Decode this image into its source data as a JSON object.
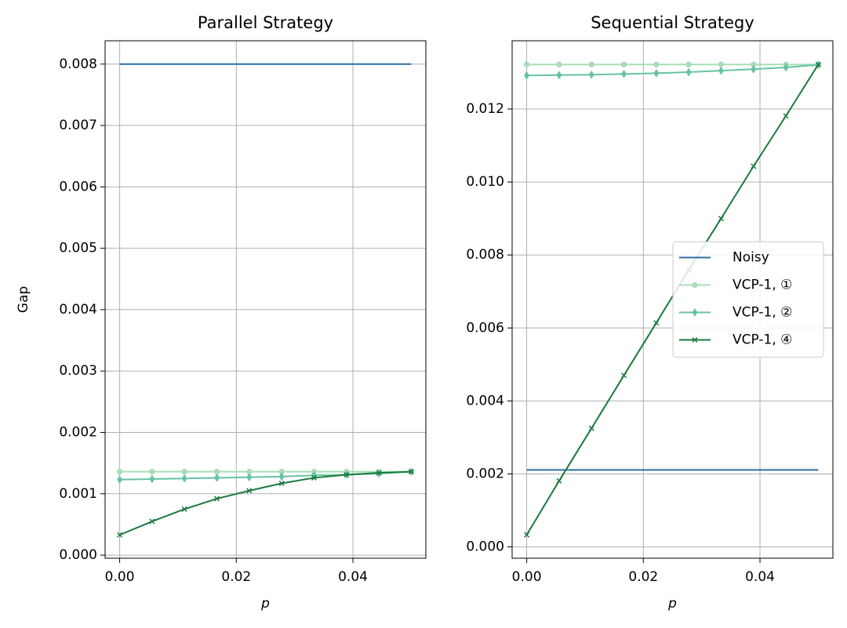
{
  "chart_data": [
    {
      "type": "line",
      "title": "Parallel Strategy",
      "xlabel": "p",
      "ylabel": "Gap",
      "x": [
        0,
        0.005556,
        0.011111,
        0.016667,
        0.022222,
        0.027778,
        0.033333,
        0.038889,
        0.044444,
        0.05
      ],
      "series": [
        {
          "name": "Noisy",
          "color": "#2f6ca3",
          "values": [
            0.008,
            0.008,
            0.008,
            0.008,
            0.008,
            0.008,
            0.008,
            0.008,
            0.008,
            0.008
          ]
        },
        {
          "name": "VCP-1, ①",
          "color": "#a8ddb5",
          "marker": "circle",
          "values": [
            0.00136,
            0.00136,
            0.00136,
            0.00136,
            0.00136,
            0.00136,
            0.00136,
            0.00136,
            0.00136,
            0.00136
          ]
        },
        {
          "name": "VCP-1, ②",
          "color": "#66c2a4",
          "marker": "diamond",
          "values": [
            0.00123,
            0.00124,
            0.00125,
            0.00126,
            0.00127,
            0.00128,
            0.0013,
            0.00131,
            0.00133,
            0.00136
          ]
        },
        {
          "name": "VCP-1, ④",
          "color": "#1a7a3e",
          "marker": "x",
          "values": [
            0.00033,
            0.00055,
            0.00075,
            0.00092,
            0.00105,
            0.00117,
            0.00126,
            0.00131,
            0.00134,
            0.00136
          ]
        }
      ],
      "xlim": [
        -0.0025,
        0.0525
      ],
      "ylim": [
        -5e-05,
        0.00838
      ],
      "xticks": [
        {
          "value": 0,
          "label": "0.00"
        },
        0.02,
        0.04
      ],
      "yticks": [
        {
          "value": 0,
          "label": "0.000"
        },
        0.001,
        0.002,
        0.003,
        0.004,
        0.005,
        0.006,
        0.007,
        0.008
      ],
      "grid": true
    },
    {
      "type": "line",
      "title": "Sequential Strategy",
      "xlabel": "p",
      "legend": "center right",
      "x": [
        0,
        0.005556,
        0.011111,
        0.016667,
        0.022222,
        0.027778,
        0.033333,
        0.038889,
        0.044444,
        0.05
      ],
      "series": [
        {
          "name": "Noisy",
          "color": "#2f6ca3",
          "values": [
            0.00211,
            0.00211,
            0.00211,
            0.00211,
            0.00211,
            0.00211,
            0.00211,
            0.00211,
            0.00211,
            0.00211
          ]
        },
        {
          "name": "VCP-1, ①",
          "color": "#a8ddb5",
          "marker": "circle",
          "values": [
            0.01322,
            0.01322,
            0.01322,
            0.01322,
            0.01322,
            0.01322,
            0.01322,
            0.01322,
            0.01322,
            0.01322
          ]
        },
        {
          "name": "VCP-1, ②",
          "color": "#66c2a4",
          "marker": "diamond",
          "values": [
            0.01292,
            0.01293,
            0.01294,
            0.01296,
            0.01298,
            0.01301,
            0.01305,
            0.01309,
            0.01314,
            0.01321
          ]
        },
        {
          "name": "VCP-1, ④",
          "color": "#1a7a3e",
          "marker": "x",
          "values": [
            0.00033,
            0.00181,
            0.00325,
            0.0047,
            0.00614,
            0.00759,
            0.009,
            0.01043,
            0.01181,
            0.01322
          ]
        }
      ],
      "xlim": [
        -0.0025,
        0.0525
      ],
      "ylim": [
        -0.00031,
        0.01387
      ],
      "xticks": [
        {
          "value": 0,
          "label": "0.00"
        },
        0.02,
        0.04
      ],
      "yticks": [
        {
          "value": 0,
          "label": "0.000"
        },
        0.002,
        0.004,
        0.006,
        0.008,
        {
          "value": 0.01,
          "label": "0.010"
        },
        0.012
      ],
      "grid": true
    }
  ]
}
